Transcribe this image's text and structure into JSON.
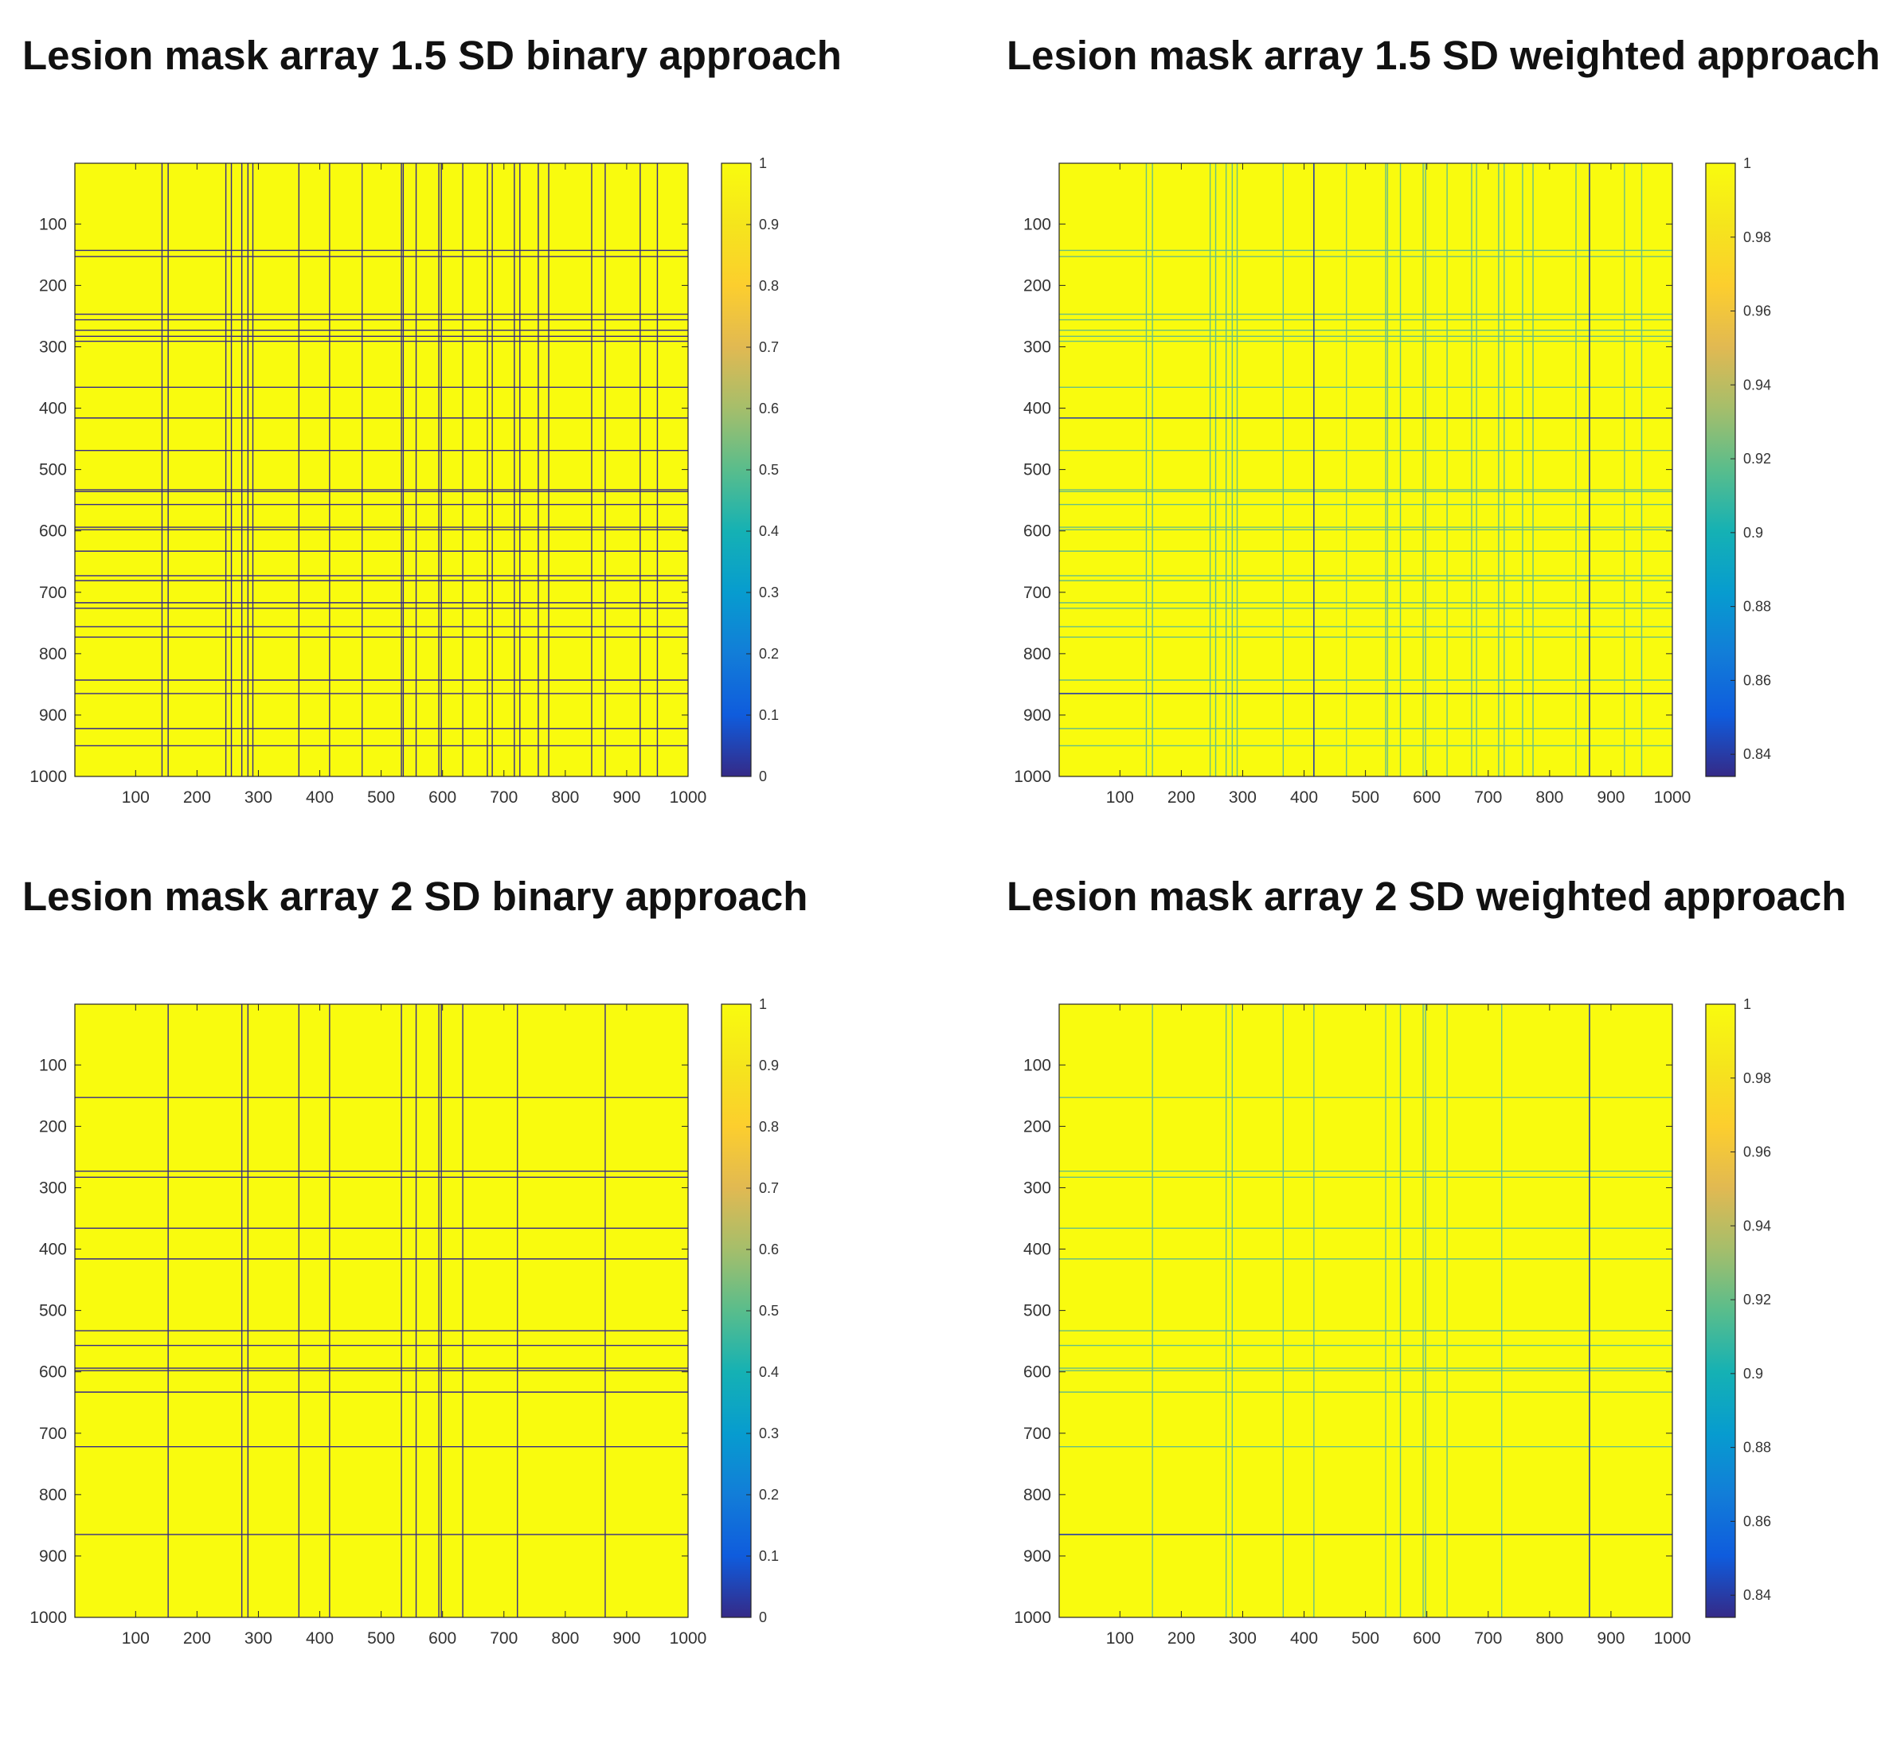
{
  "chart_data": [
    {
      "type": "heatmap",
      "title": "Lesion mask array 1.5 SD binary approach",
      "xlim": [
        1,
        1000
      ],
      "ylim": [
        1,
        1000
      ],
      "x_ticks": [
        "100",
        "200",
        "300",
        "400",
        "500",
        "600",
        "700",
        "800",
        "900",
        "1000"
      ],
      "y_ticks": [
        "100",
        "200",
        "300",
        "400",
        "500",
        "600",
        "700",
        "800",
        "900",
        "1000"
      ],
      "background_value": 1,
      "line_value": 0,
      "lesion_indices": [
        143,
        153,
        247,
        256,
        273,
        283,
        291,
        366,
        416,
        469,
        533,
        536,
        557,
        594,
        598,
        633,
        673,
        681,
        717,
        726,
        756,
        773,
        843,
        865,
        922,
        950
      ],
      "colorbar": {
        "min": 0,
        "max": 1,
        "ticks": [
          "0",
          "0.1",
          "0.2",
          "0.3",
          "0.4",
          "0.5",
          "0.6",
          "0.7",
          "0.8",
          "0.9",
          "1"
        ],
        "colormap": "parula"
      },
      "grid": false
    },
    {
      "type": "heatmap",
      "title": "Lesion mask array 1.5 SD weighted approach",
      "xlim": [
        1,
        1000
      ],
      "ylim": [
        1,
        1000
      ],
      "x_ticks": [
        "100",
        "200",
        "300",
        "400",
        "500",
        "600",
        "700",
        "800",
        "900",
        "1000"
      ],
      "y_ticks": [
        "100",
        "200",
        "300",
        "400",
        "500",
        "600",
        "700",
        "800",
        "900",
        "1000"
      ],
      "background_value": 1,
      "line_value": 0.92,
      "strong_value": 0.84,
      "lesion_indices": [
        143,
        153,
        247,
        256,
        273,
        283,
        291,
        366,
        469,
        533,
        536,
        557,
        594,
        598,
        633,
        673,
        681,
        717,
        726,
        756,
        773,
        843,
        922,
        950
      ],
      "strong_indices": [
        416,
        865
      ],
      "colorbar": {
        "min": 0.834,
        "max": 1,
        "ticks": [
          "0.84",
          "0.86",
          "0.88",
          "0.9",
          "0.92",
          "0.94",
          "0.96",
          "0.98",
          "1"
        ],
        "colormap": "parula"
      },
      "grid": false
    },
    {
      "type": "heatmap",
      "title": "Lesion mask array 2 SD binary approach",
      "xlim": [
        1,
        1000
      ],
      "ylim": [
        1,
        1000
      ],
      "x_ticks": [
        "100",
        "200",
        "300",
        "400",
        "500",
        "600",
        "700",
        "800",
        "900",
        "1000"
      ],
      "y_ticks": [
        "100",
        "200",
        "300",
        "400",
        "500",
        "600",
        "700",
        "800",
        "900",
        "1000"
      ],
      "background_value": 1,
      "line_value": 0,
      "lesion_indices": [
        153,
        273,
        283,
        366,
        416,
        533,
        557,
        594,
        598,
        633,
        722,
        865
      ],
      "colorbar": {
        "min": 0,
        "max": 1,
        "ticks": [
          "0",
          "0.1",
          "0.2",
          "0.3",
          "0.4",
          "0.5",
          "0.6",
          "0.7",
          "0.8",
          "0.9",
          "1"
        ],
        "colormap": "parula"
      },
      "grid": false
    },
    {
      "type": "heatmap",
      "title": "Lesion mask array 2 SD weighted approach",
      "xlim": [
        1,
        1000
      ],
      "ylim": [
        1,
        1000
      ],
      "x_ticks": [
        "100",
        "200",
        "300",
        "400",
        "500",
        "600",
        "700",
        "800",
        "900",
        "1000"
      ],
      "y_ticks": [
        "100",
        "200",
        "300",
        "400",
        "500",
        "600",
        "700",
        "800",
        "900",
        "1000"
      ],
      "background_value": 1,
      "line_value": 0.92,
      "strong_value": 0.84,
      "lesion_indices": [
        153,
        273,
        283,
        366,
        416,
        533,
        557,
        594,
        598,
        633,
        722
      ],
      "strong_indices": [
        865
      ],
      "colorbar": {
        "min": 0.834,
        "max": 1,
        "ticks": [
          "0.84",
          "0.86",
          "0.88",
          "0.9",
          "0.92",
          "0.94",
          "0.96",
          "0.98",
          "1"
        ],
        "colormap": "parula"
      },
      "grid": false
    }
  ]
}
